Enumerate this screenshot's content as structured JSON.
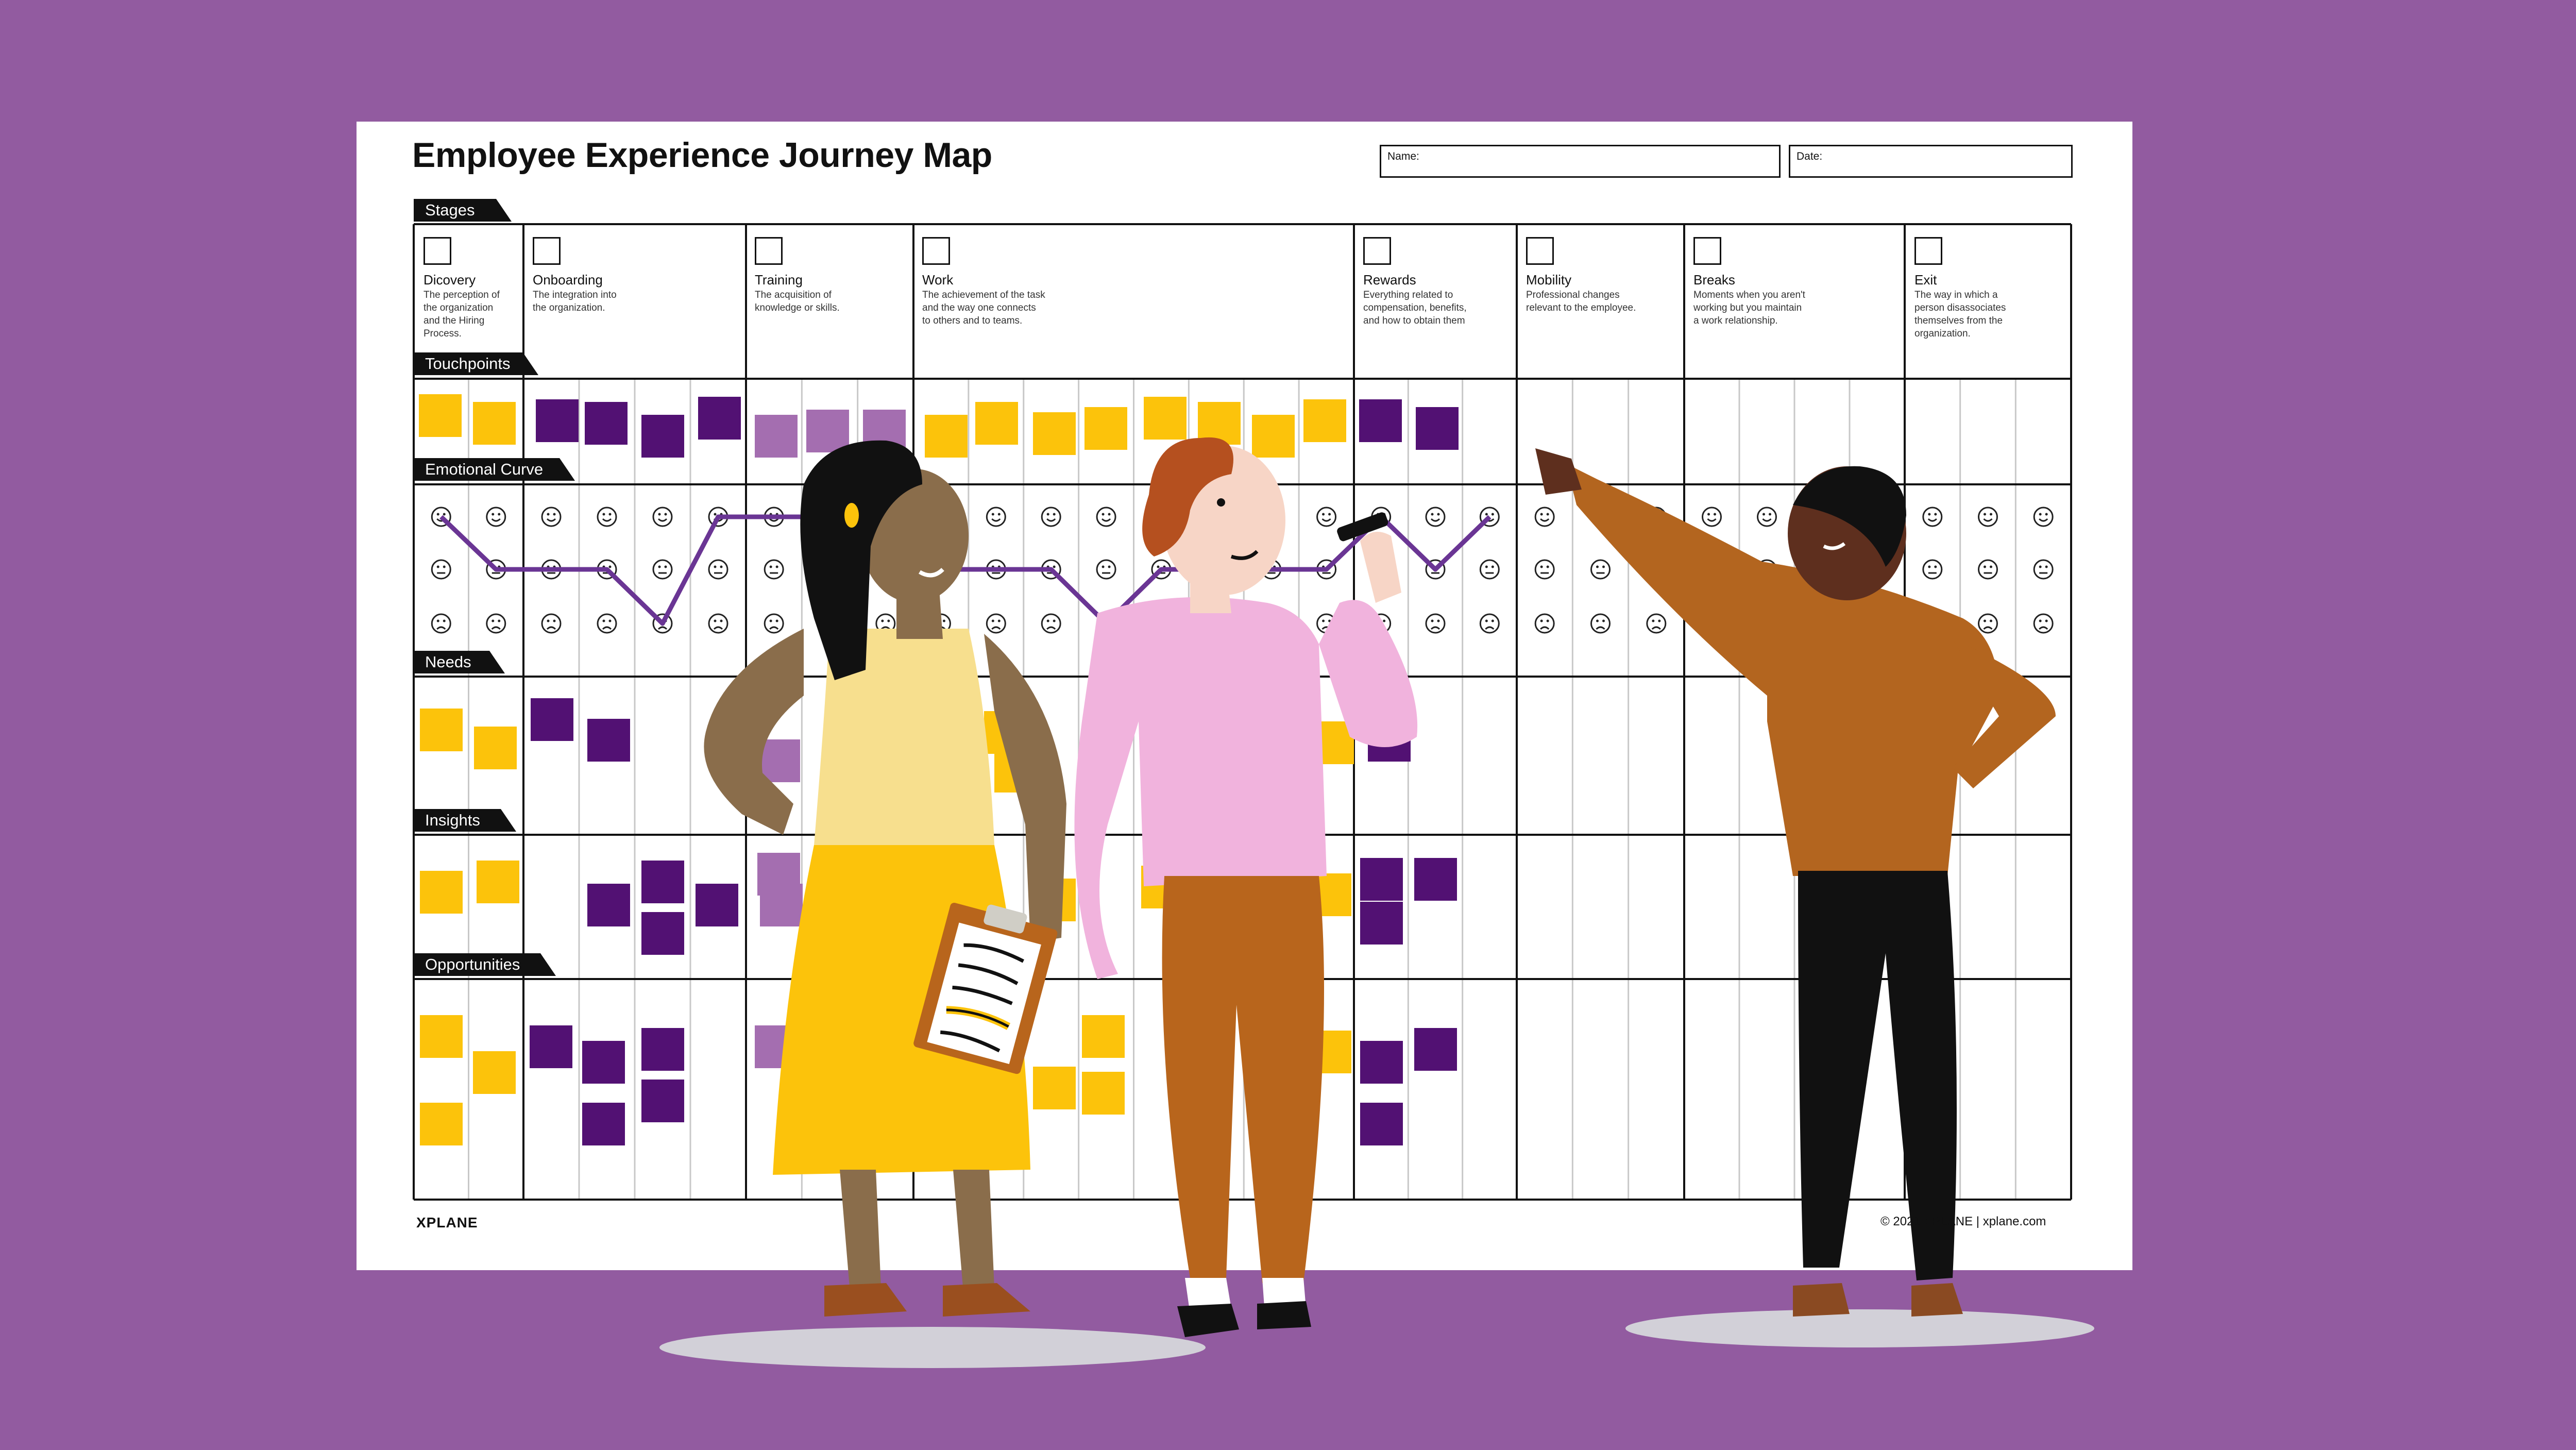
{
  "title": "Employee Experience Journey Map",
  "fields": {
    "name_label": "Name:",
    "date_label": "Date:"
  },
  "sections": {
    "stages": "Stages",
    "touchpoints": "Touchpoints",
    "emotional_curve": "Emotional Curve",
    "needs": "Needs",
    "insights": "Insights",
    "opportunities": "Opportunities"
  },
  "stages": [
    {
      "name": "Dicovery",
      "icon": "eye-icon",
      "desc": [
        "The perception of",
        "the organization",
        "and the Hiring",
        "Process."
      ]
    },
    {
      "name": "Onboarding",
      "icon": "enter-arrow-icon",
      "desc": [
        "The integration into",
        "the organization."
      ]
    },
    {
      "name": "Training",
      "icon": "graduation-cap-icon",
      "desc": [
        "The acquisition of",
        "knowledge or skills."
      ]
    },
    {
      "name": "Work",
      "icon": "briefcase-icon",
      "desc": [
        "The achievement of the task",
        "and the way one connects",
        "to others and to teams."
      ]
    },
    {
      "name": "Rewards",
      "icon": "dollar-icon",
      "desc": [
        "Everything related to",
        "compensation, benefits,",
        "and how to obtain them"
      ]
    },
    {
      "name": "Mobility",
      "icon": "arrows-icon",
      "desc": [
        "Professional changes",
        "relevant to the employee."
      ]
    },
    {
      "name": "Breaks",
      "icon": "brackets-icon",
      "desc": [
        "Moments when you aren't",
        "working but you maintain",
        "a work relationship."
      ]
    },
    {
      "name": "Exit",
      "icon": "exit-arrow-icon",
      "desc": [
        "The way in which a",
        "person disassociates",
        "themselves from the",
        "organization."
      ]
    }
  ],
  "footer": {
    "logo": "XPLANE",
    "copyright": "© 2021 XPLANE | xplane.com"
  },
  "colors": {
    "background": "#925ba0",
    "yellow_note": "#fcc30b",
    "purple_note": "#521173",
    "lavender_note": "#a46eb0",
    "curve": "#6a3594"
  }
}
